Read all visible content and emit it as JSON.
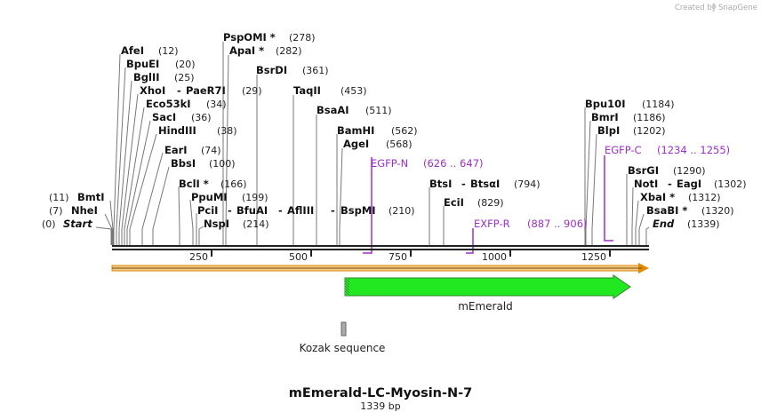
{
  "credit": {
    "text": "Created by",
    "brand": "SnapGene"
  },
  "plasmid": {
    "name": "mEmerald-LC-Myosin-N-7",
    "length_label": "1339 bp",
    "length_bp": 1339
  },
  "colors": {
    "primer": "#9b30c8",
    "feature_green": "#22e822",
    "orf_arrow": "#e08a00",
    "kozak": "#aaaaaa"
  },
  "axis_ticks": [
    "250",
    "500",
    "750",
    "1000",
    "1250"
  ],
  "sites": [
    {
      "name": "AfeI",
      "pos": "(12)",
      "bp": 12
    },
    {
      "name": "BpuEI",
      "pos": "(20)",
      "bp": 20
    },
    {
      "name": "BglII",
      "pos": "(25)",
      "bp": 25
    },
    {
      "name": "XhoI",
      "name2": "PaeR7I",
      "pos": "(29)",
      "bp": 29
    },
    {
      "name": "Eco53kI",
      "pos": "(34)",
      "bp": 34
    },
    {
      "name": "SacI",
      "pos": "(36)",
      "bp": 36
    },
    {
      "name": "HindIII",
      "pos": "(38)",
      "bp": 38
    },
    {
      "name": "EarI",
      "pos": "(74)",
      "bp": 74
    },
    {
      "name": "BbsI",
      "pos": "(100)",
      "bp": 100
    },
    {
      "name": "BclI *",
      "pos": "(166)",
      "bp": 166
    },
    {
      "name": "PpuMI",
      "pos": "(199)",
      "bp": 199
    },
    {
      "name": "PciI",
      "name2": "BfuAI",
      "name3": "AflIII",
      "name4": "BspMI",
      "pos": "(210)",
      "bp": 210
    },
    {
      "name": "NspI",
      "pos": "(214)",
      "bp": 214
    },
    {
      "name": "PspOMI *",
      "pos": "(278)",
      "bp": 278
    },
    {
      "name": "ApaI *",
      "pos": "(282)",
      "bp": 282
    },
    {
      "name": "BsrDI",
      "pos": "(361)",
      "bp": 361
    },
    {
      "name": "TaqII",
      "pos": "(453)",
      "bp": 453
    },
    {
      "name": "BsaAI",
      "pos": "(511)",
      "bp": 511
    },
    {
      "name": "BamHI",
      "pos": "(562)",
      "bp": 562
    },
    {
      "name": "AgeI",
      "pos": "(568)",
      "bp": 568
    },
    {
      "name": "BtsI",
      "name2": "BtsαI",
      "pos": "(794)",
      "bp": 794
    },
    {
      "name": "EciI",
      "pos": "(829)",
      "bp": 829
    },
    {
      "name": "Bpu10I",
      "pos": "(1184)",
      "bp": 1184
    },
    {
      "name": "BmrI",
      "pos": "(1186)",
      "bp": 1186
    },
    {
      "name": "BlpI",
      "pos": "(1202)",
      "bp": 1202
    },
    {
      "name": "BsrGI",
      "pos": "(1290)",
      "bp": 1290
    },
    {
      "name": "NotI",
      "name2": "EagI",
      "pos": "(1302)",
      "bp": 1302
    },
    {
      "name": "XbaI *",
      "pos": "(1312)",
      "bp": 1312
    },
    {
      "name": "BsaBI *",
      "pos": "(1320)",
      "bp": 1320
    },
    {
      "name": "BmtI",
      "pos": "(11)",
      "bp": 11
    },
    {
      "name": "NheI",
      "pos": "(7)",
      "bp": 7
    },
    {
      "name": "Start",
      "pos": "(0)",
      "bp": 0
    },
    {
      "name": "End",
      "pos": "(1339)",
      "bp": 1339
    }
  ],
  "primers": [
    {
      "name": "EGFP-N",
      "range": "(626 .. 647)",
      "start": 626,
      "end": 647
    },
    {
      "name": "EXFP-R",
      "range": "(887 .. 906)",
      "start": 887,
      "end": 906
    },
    {
      "name": "EGFP-C",
      "range": "(1234 .. 1255)",
      "start": 1234,
      "end": 1255
    }
  ],
  "features": [
    {
      "name": "mEmerald",
      "start": 581,
      "end": 1297,
      "type": "CDS"
    },
    {
      "name": "Kozak sequence",
      "start": 571,
      "end": 580,
      "type": "misc"
    }
  ]
}
